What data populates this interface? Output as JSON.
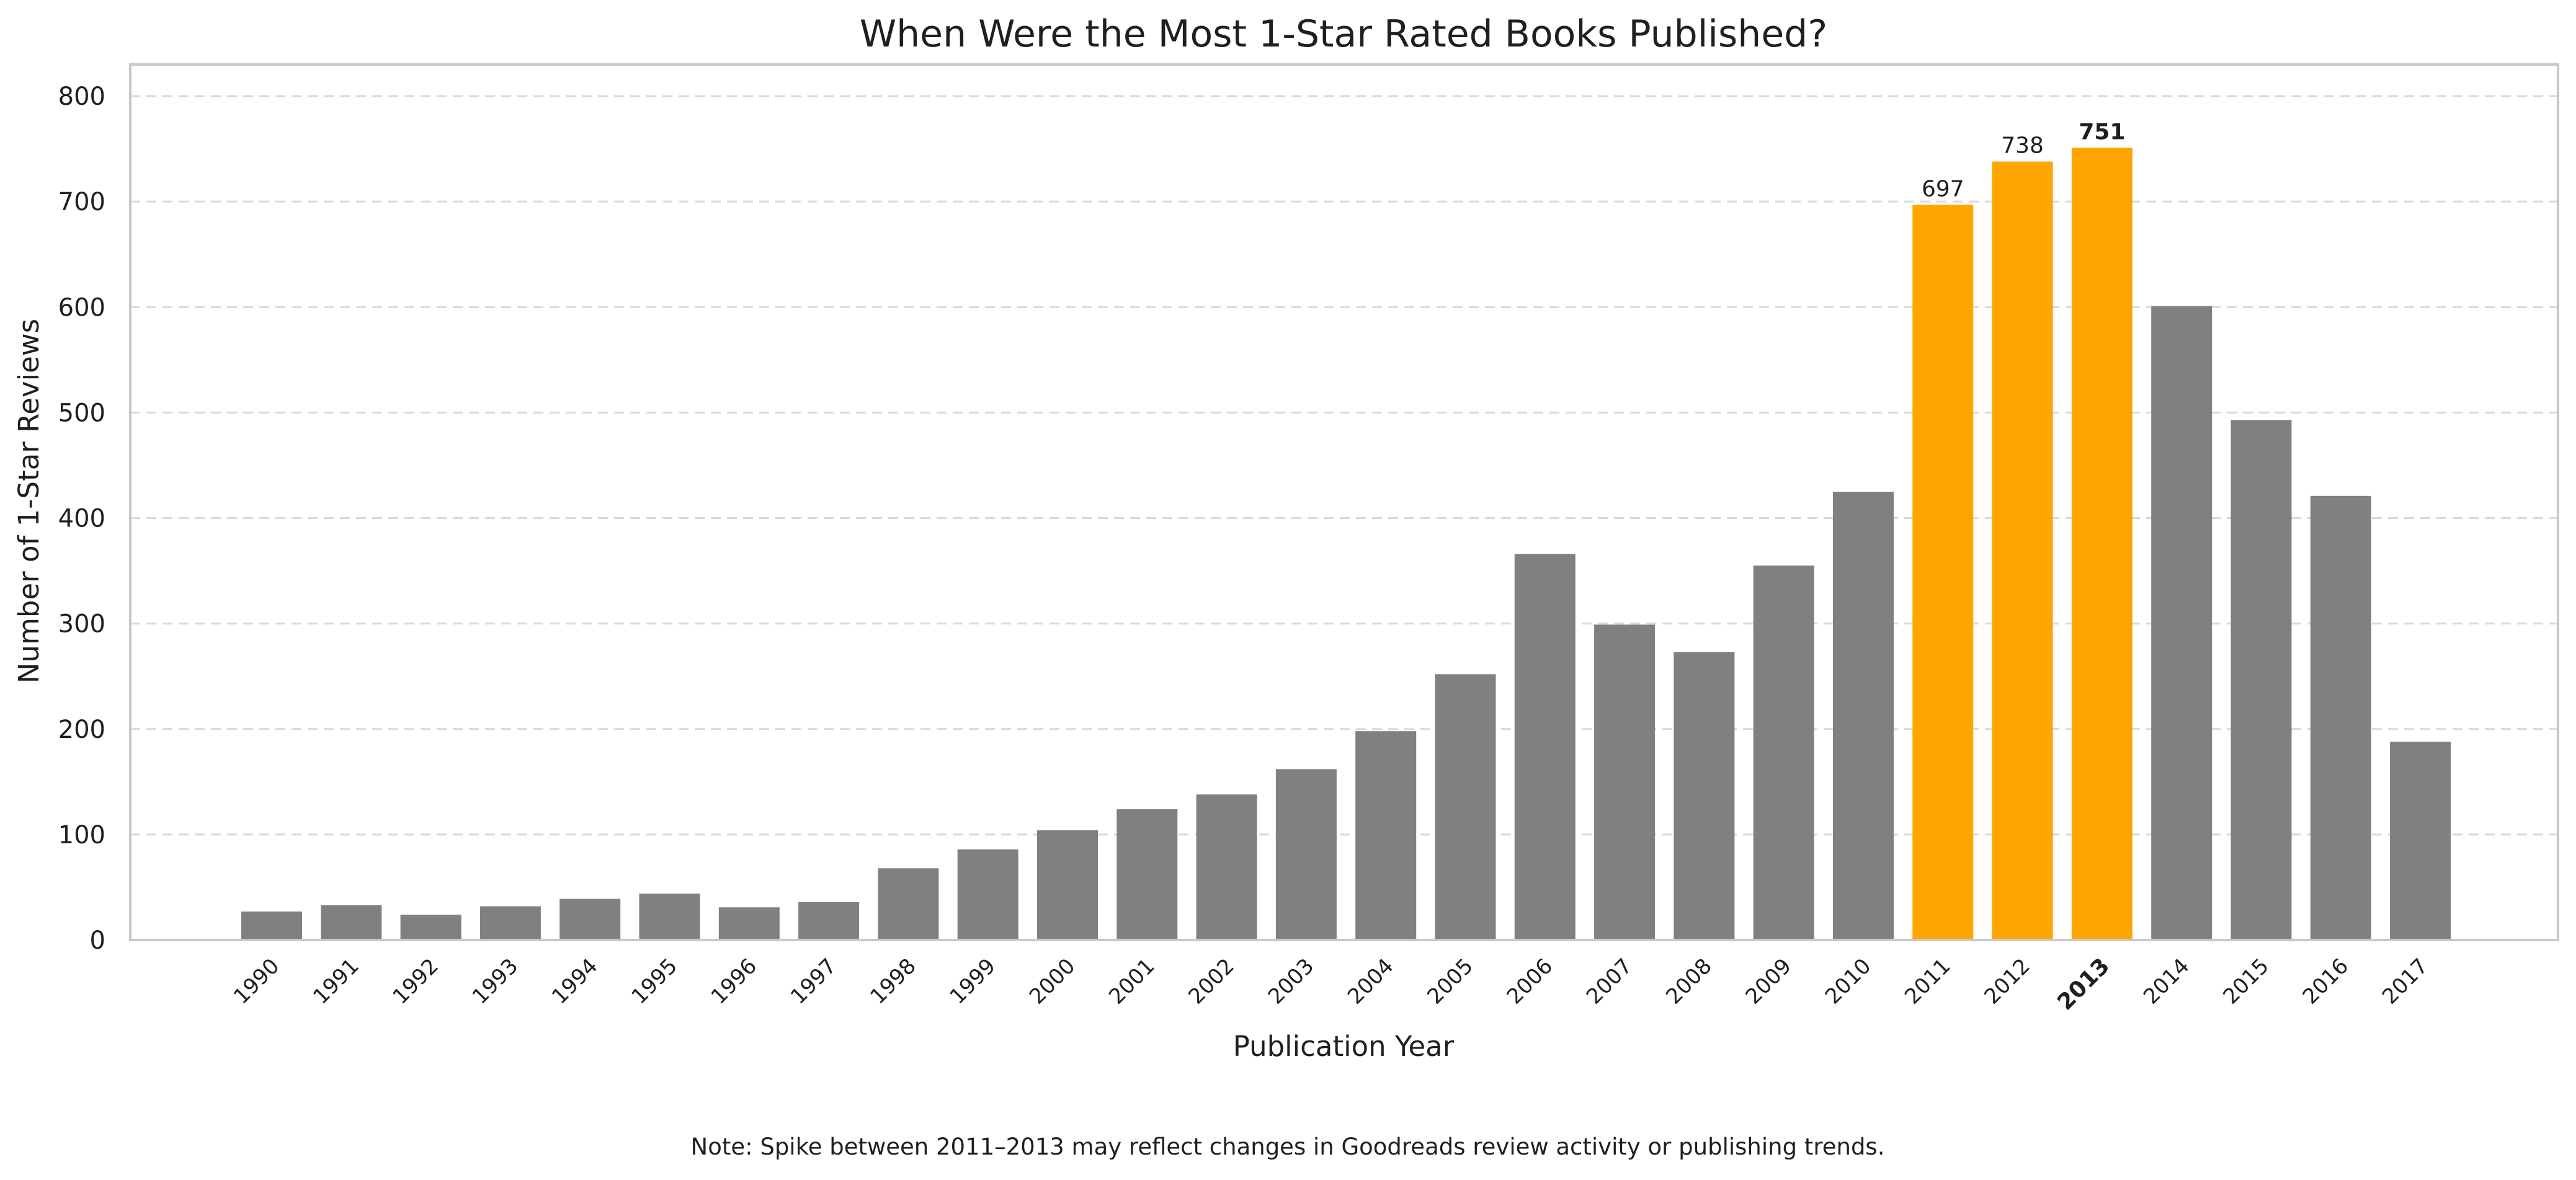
{
  "chart_data": {
    "type": "bar",
    "title": "When Were the Most 1-Star Rated Books Published?",
    "xlabel": "Publication Year",
    "ylabel": "Number of 1-Star Reviews",
    "ylim": [
      0,
      830
    ],
    "yticks": [
      0,
      100,
      200,
      300,
      400,
      500,
      600,
      700,
      800
    ],
    "grid": "horizontal dashed",
    "categories": [
      "1990",
      "1991",
      "1992",
      "1993",
      "1994",
      "1995",
      "1996",
      "1997",
      "1998",
      "1999",
      "2000",
      "2001",
      "2002",
      "2003",
      "2004",
      "2005",
      "2006",
      "2007",
      "2008",
      "2009",
      "2010",
      "2011",
      "2012",
      "2013",
      "2014",
      "2015",
      "2016",
      "2017"
    ],
    "values": [
      27,
      33,
      24,
      32,
      39,
      44,
      31,
      36,
      68,
      86,
      104,
      124,
      138,
      162,
      198,
      252,
      366,
      299,
      273,
      355,
      425,
      697,
      738,
      751,
      601,
      493,
      421,
      188
    ],
    "highlighted": [
      "2011",
      "2012",
      "2013"
    ],
    "peak": "2013",
    "data_labels": [
      {
        "category": "2011",
        "text": "697"
      },
      {
        "category": "2012",
        "text": "738"
      },
      {
        "category": "2013",
        "text": "751"
      }
    ],
    "colors": {
      "default_bar": "#808080",
      "highlight_bar": "#ffa500",
      "grid": "#d9d9d9",
      "frame": "#c8c8c8",
      "text": "#1f1f1f"
    },
    "note": "Note: Spike between 2011–2013 may reflect changes in Goodreads review activity or publishing trends."
  }
}
